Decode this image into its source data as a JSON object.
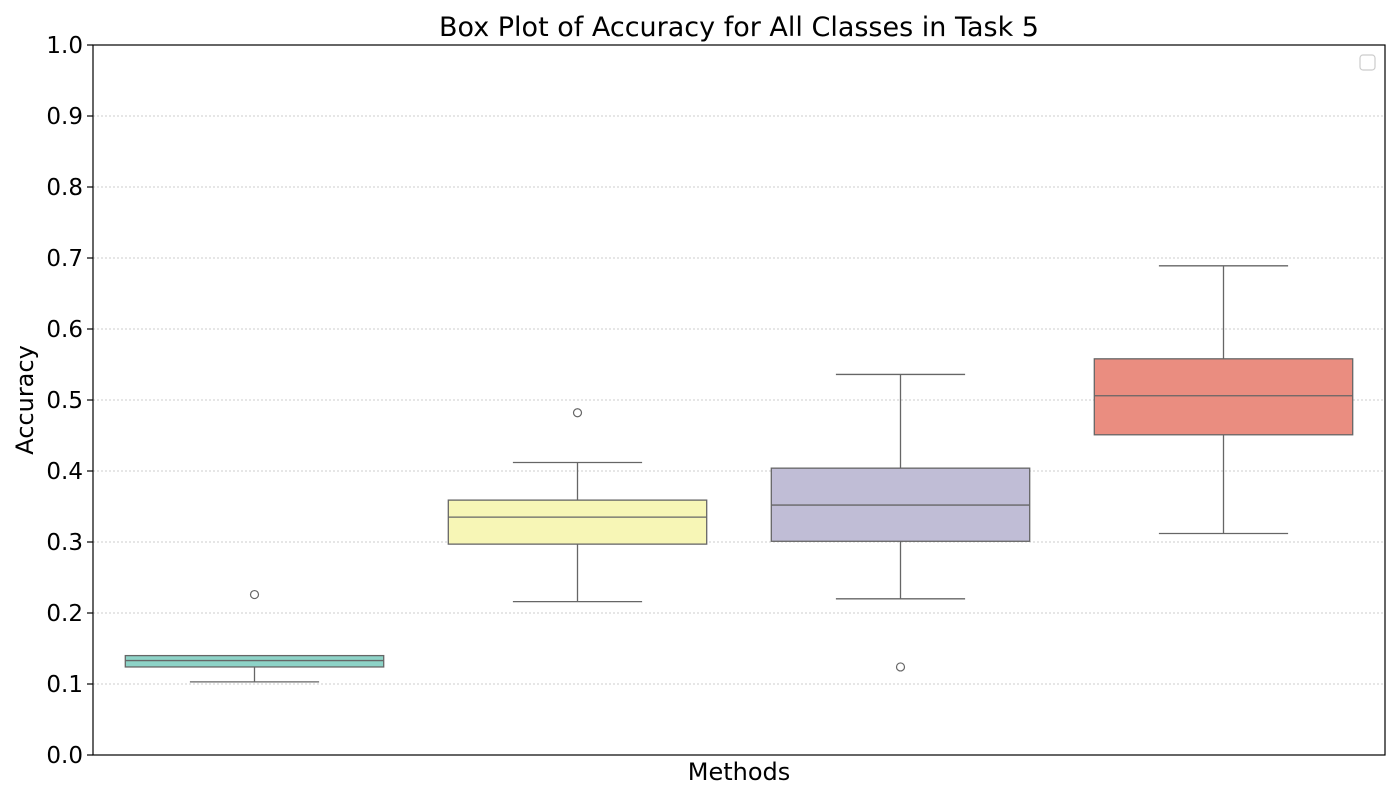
{
  "chart_data": {
    "type": "box",
    "title": "Box Plot of Accuracy for All Classes in Task 5",
    "xlabel": "Methods",
    "ylabel": "Accuracy",
    "ylim": [
      0.0,
      1.0
    ],
    "yticks": [
      "0.0",
      "0.1",
      "0.2",
      "0.3",
      "0.4",
      "0.5",
      "0.6",
      "0.7",
      "0.8",
      "0.9",
      "1.0"
    ],
    "grid": "horizontal dotted",
    "legend": "top-right (empty)",
    "series": [
      {
        "color": "#8dd3c7",
        "whisker_low": 0.103,
        "q1": 0.124,
        "median": 0.133,
        "q3": 0.14,
        "whisker_high": 0.14,
        "outliers": [
          0.226
        ]
      },
      {
        "color": "#f7f6b6",
        "whisker_low": 0.216,
        "q1": 0.297,
        "median": 0.335,
        "q3": 0.359,
        "whisker_high": 0.412,
        "outliers": [
          0.482
        ]
      },
      {
        "color": "#c0bdd6",
        "whisker_low": 0.22,
        "q1": 0.301,
        "median": 0.352,
        "q3": 0.404,
        "whisker_high": 0.536,
        "outliers": [
          0.124
        ]
      },
      {
        "color": "#ea8d80",
        "whisker_low": 0.312,
        "q1": 0.451,
        "median": 0.506,
        "q3": 0.558,
        "whisker_high": 0.689,
        "outliers": []
      }
    ]
  }
}
